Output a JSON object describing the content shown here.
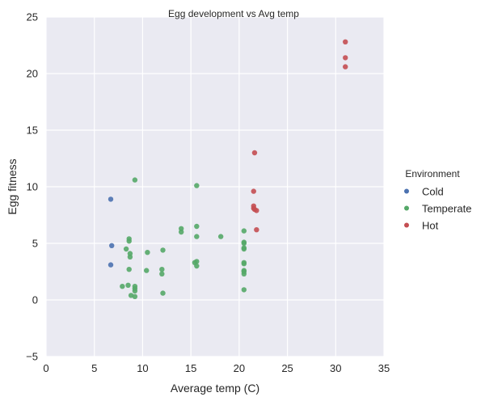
{
  "chart_data": {
    "type": "scatter",
    "title": "Egg development vs Avg temp",
    "xlabel": "Average temp (C)",
    "ylabel": "Egg fitness",
    "xlim": [
      0,
      35
    ],
    "ylim": [
      -5,
      25
    ],
    "xticks": [
      0,
      5,
      10,
      15,
      20,
      25,
      30,
      35
    ],
    "yticks": [
      -5,
      0,
      5,
      10,
      15,
      20,
      25
    ],
    "xtick_labels": [
      "0",
      "5",
      "10",
      "15",
      "20",
      "25",
      "30",
      "35"
    ],
    "ytick_labels": [
      "−5",
      "0",
      "5",
      "10",
      "15",
      "20",
      "25"
    ],
    "grid": true,
    "legend": {
      "title": "Environment",
      "placement": "right-outside"
    },
    "series": [
      {
        "name": "Cold",
        "color": "#4c72b0",
        "points": [
          [
            6.7,
            8.9
          ],
          [
            6.8,
            4.8
          ],
          [
            6.7,
            3.1
          ]
        ]
      },
      {
        "name": "Temperate",
        "color": "#55a868",
        "points": [
          [
            9.2,
            10.6
          ],
          [
            15.6,
            10.1
          ],
          [
            8.6,
            5.4
          ],
          [
            8.6,
            5.2
          ],
          [
            8.3,
            4.5
          ],
          [
            8.7,
            4.1
          ],
          [
            8.7,
            3.8
          ],
          [
            8.6,
            2.7
          ],
          [
            7.9,
            1.2
          ],
          [
            8.5,
            1.3
          ],
          [
            9.2,
            1.2
          ],
          [
            9.2,
            1.0
          ],
          [
            9.2,
            0.8
          ],
          [
            8.8,
            0.4
          ],
          [
            9.2,
            0.3
          ],
          [
            10.5,
            4.2
          ],
          [
            10.4,
            2.6
          ],
          [
            12.1,
            4.4
          ],
          [
            12.0,
            2.7
          ],
          [
            12.0,
            2.3
          ],
          [
            12.1,
            0.6
          ],
          [
            14.0,
            6.3
          ],
          [
            14.0,
            6.0
          ],
          [
            15.6,
            6.5
          ],
          [
            15.6,
            5.6
          ],
          [
            15.4,
            3.3
          ],
          [
            15.6,
            3.4
          ],
          [
            15.6,
            3.0
          ],
          [
            18.1,
            5.6
          ],
          [
            20.5,
            6.1
          ],
          [
            20.5,
            5.1
          ],
          [
            20.5,
            5.0
          ],
          [
            20.5,
            4.6
          ],
          [
            20.5,
            4.5
          ],
          [
            20.5,
            3.3
          ],
          [
            20.5,
            3.2
          ],
          [
            20.5,
            2.6
          ],
          [
            20.5,
            2.5
          ],
          [
            20.5,
            2.3
          ],
          [
            20.5,
            0.9
          ]
        ]
      },
      {
        "name": "Hot",
        "color": "#c44e52",
        "points": [
          [
            31.0,
            22.8
          ],
          [
            31.0,
            21.4
          ],
          [
            31.0,
            20.6
          ],
          [
            21.6,
            13.0
          ],
          [
            21.5,
            9.6
          ],
          [
            21.5,
            8.3
          ],
          [
            21.5,
            8.1
          ],
          [
            21.6,
            8.0
          ],
          [
            21.8,
            7.9
          ],
          [
            21.8,
            6.2
          ]
        ]
      }
    ]
  }
}
